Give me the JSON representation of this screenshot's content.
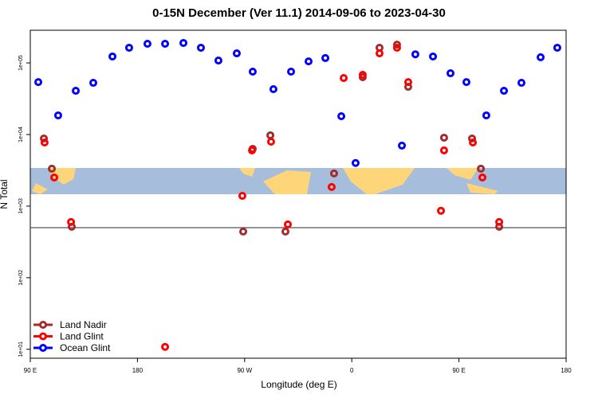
{
  "chart_data": {
    "type": "scatter",
    "title": "0-15N December (Ver 11.1)   2014-09-06 to 2023-04-30",
    "x_label": "Longitude (deg E)",
    "y_label": "N Total",
    "log_y": true,
    "legend": "bottom-left",
    "hline": 500,
    "xlim": [
      90,
      540
    ],
    "ylim": [
      7.5,
      286000
    ],
    "xticks": [
      {
        "value": 90,
        "label": "90 E"
      },
      {
        "value": 180,
        "label": "180"
      },
      {
        "value": 270,
        "label": "90 W"
      },
      {
        "value": 360,
        "label": "0"
      },
      {
        "value": 450,
        "label": "90 E"
      },
      {
        "value": 540,
        "label": "180"
      }
    ],
    "yticks": [
      {
        "value": 10,
        "label": "1e+01"
      },
      {
        "value": 100,
        "label": "1e+02"
      },
      {
        "value": 1000,
        "label": "1e+03"
      },
      {
        "value": 10000,
        "label": "1e+04"
      },
      {
        "value": 100000,
        "label": "1e+05"
      }
    ],
    "series": [
      {
        "name": "Land Nadir",
        "color": "#a52a2a",
        "x": [
          101.4,
          108.1,
          124.8,
          268.8,
          276.8,
          291.6,
          304.3,
          345.1,
          369.2,
          383.3,
          398,
          407.4,
          437.5,
          461,
          468.4,
          483.8
        ],
        "values": [
          8800,
          3330,
          514,
          441,
          6310,
          9750,
          441,
          2860,
          63100,
          163000,
          180000,
          46400,
          9030,
          8800,
          3330,
          514
        ]
      },
      {
        "name": "Land Glint",
        "color": "#ff0000",
        "x": [
          102,
          110.1,
          124.2,
          203.2,
          268.1,
          276.2,
          292.2,
          306.3,
          343.1,
          353.2,
          369.2,
          383.3,
          398,
          407.4,
          434.9,
          437.5,
          461.7,
          469.7,
          483.8
        ],
        "values": [
          7740,
          2510,
          600,
          10.8,
          1390,
          6000,
          7940,
          555,
          1850,
          61500,
          68100,
          136000,
          163000,
          54000,
          860,
          6000,
          7740,
          2510,
          600
        ]
      },
      {
        "name": "Ocean Glint",
        "color": "#0000ff",
        "x": [
          96.7,
          113.4,
          128.2,
          142.9,
          159,
          173,
          188.4,
          203.2,
          218.6,
          233.3,
          248,
          263.4,
          276.8,
          294.2,
          309,
          323.7,
          337.8,
          351.2,
          363.2,
          402.1,
          413.4,
          428.2,
          442.9,
          456.3,
          473,
          487.8,
          502.5,
          518.6,
          532.6
        ],
        "values": [
          54000,
          18500,
          40800,
          52700,
          123000,
          163000,
          185000,
          185000,
          190000,
          163000,
          108000,
          136000,
          75500,
          43000,
          75500,
          105000,
          117000,
          18000,
          4000,
          7000,
          132000,
          123000,
          71700,
          54000,
          18500,
          40800,
          52700,
          120000,
          163000
        ]
      }
    ]
  }
}
